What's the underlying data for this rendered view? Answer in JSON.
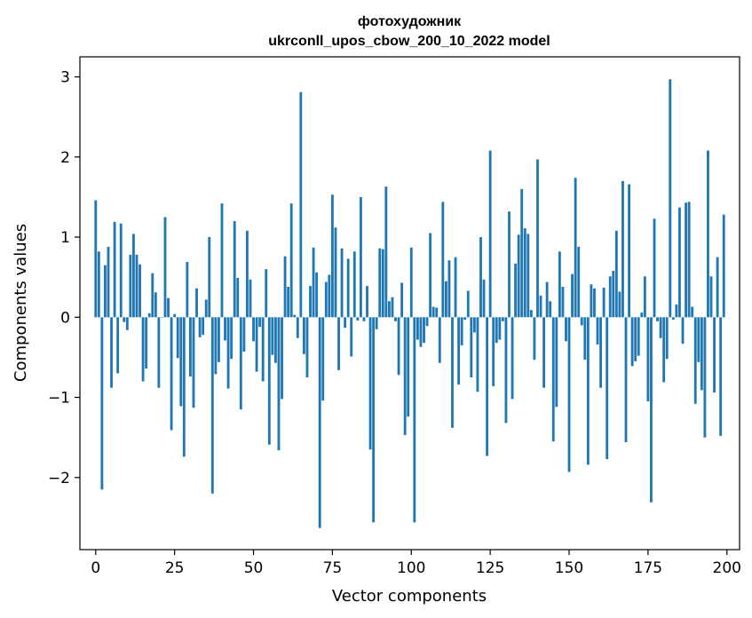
{
  "chart_data": {
    "type": "bar",
    "title": "фотохудожник",
    "subtitle": "ukrconll_upos_cbow_200_10_2022 model",
    "xlabel": "Vector components",
    "ylabel": "Components values",
    "xlim": [
      -5,
      204
    ],
    "ylim": [
      -2.9,
      3.25
    ],
    "xticks": [
      0,
      25,
      50,
      75,
      100,
      125,
      150,
      175,
      200
    ],
    "yticks": [
      -2,
      -1,
      0,
      1,
      2,
      3
    ],
    "xtick_labels": [
      "0",
      "25",
      "50",
      "75",
      "100",
      "125",
      "150",
      "175",
      "200"
    ],
    "ytick_labels": [
      "−2",
      "−1",
      "0",
      "1",
      "2",
      "3"
    ],
    "grid": false,
    "color": "#1f77b4",
    "values": [
      1.46,
      0.82,
      -2.15,
      0.65,
      0.88,
      -0.88,
      1.19,
      -0.7,
      1.17,
      -0.06,
      -0.16,
      0.78,
      1.04,
      0.78,
      0.66,
      -0.8,
      -0.64,
      0.05,
      0.55,
      0.31,
      -0.88,
      0.0,
      1.25,
      0.24,
      -1.41,
      0.04,
      -0.51,
      -1.11,
      -1.74,
      0.69,
      -0.74,
      -1.13,
      0.36,
      -0.25,
      -0.22,
      0.22,
      1.0,
      -2.2,
      -0.71,
      -0.56,
      1.42,
      -0.29,
      -0.89,
      -0.52,
      1.2,
      0.49,
      -1.15,
      -0.43,
      1.08,
      0.47,
      -0.3,
      -0.68,
      -0.12,
      -0.8,
      0.6,
      -1.59,
      -0.47,
      -0.57,
      -1.66,
      -1.02,
      0.76,
      0.38,
      1.42,
      0.03,
      -0.26,
      2.81,
      -0.46,
      -0.75,
      0.39,
      0.87,
      0.56,
      -2.63,
      -1.04,
      0.44,
      0.53,
      1.53,
      1.12,
      -0.66,
      0.86,
      -0.13,
      0.73,
      -0.49,
      0.82,
      -0.04,
      1.5,
      -0.05,
      0.39,
      -1.65,
      -2.56,
      -0.15,
      0.86,
      0.85,
      1.63,
      0.2,
      0.25,
      -0.05,
      -0.72,
      0.43,
      -1.47,
      -1.24,
      0.87,
      -2.56,
      -0.28,
      -0.37,
      -0.32,
      -0.11,
      1.05,
      0.13,
      0.12,
      -0.57,
      1.44,
      0.45,
      0.71,
      -1.38,
      0.75,
      -0.84,
      -0.35,
      -0.03,
      0.33,
      -0.75,
      -0.19,
      -0.93,
      1.0,
      0.47,
      -1.73,
      2.08,
      -0.86,
      -0.32,
      -0.28,
      -0.05,
      -1.32,
      1.32,
      -1.02,
      0.67,
      1.03,
      1.6,
      1.11,
      1.04,
      0.09,
      -0.53,
      1.97,
      0.27,
      -0.88,
      0.44,
      0.2,
      -1.55,
      -1.12,
      0.82,
      0.38,
      -0.3,
      -1.93,
      0.54,
      1.74,
      0.88,
      -0.1,
      -0.53,
      -1.84,
      0.41,
      0.36,
      -0.34,
      -0.88,
      0.37,
      -1.77,
      0.51,
      0.58,
      1.08,
      0.32,
      1.7,
      -1.56,
      1.66,
      -0.61,
      -0.55,
      -0.48,
      0.06,
      0.51,
      -1.05,
      -2.31,
      1.23,
      -0.05,
      -0.26,
      -0.81,
      -0.52,
      2.97,
      -0.03,
      0.16,
      1.37,
      -0.33,
      1.43,
      1.44,
      0.13,
      -1.08,
      -0.56,
      -0.91,
      -1.5,
      2.08,
      0.51,
      -0.94,
      0.75,
      -1.48,
      1.28
    ]
  }
}
